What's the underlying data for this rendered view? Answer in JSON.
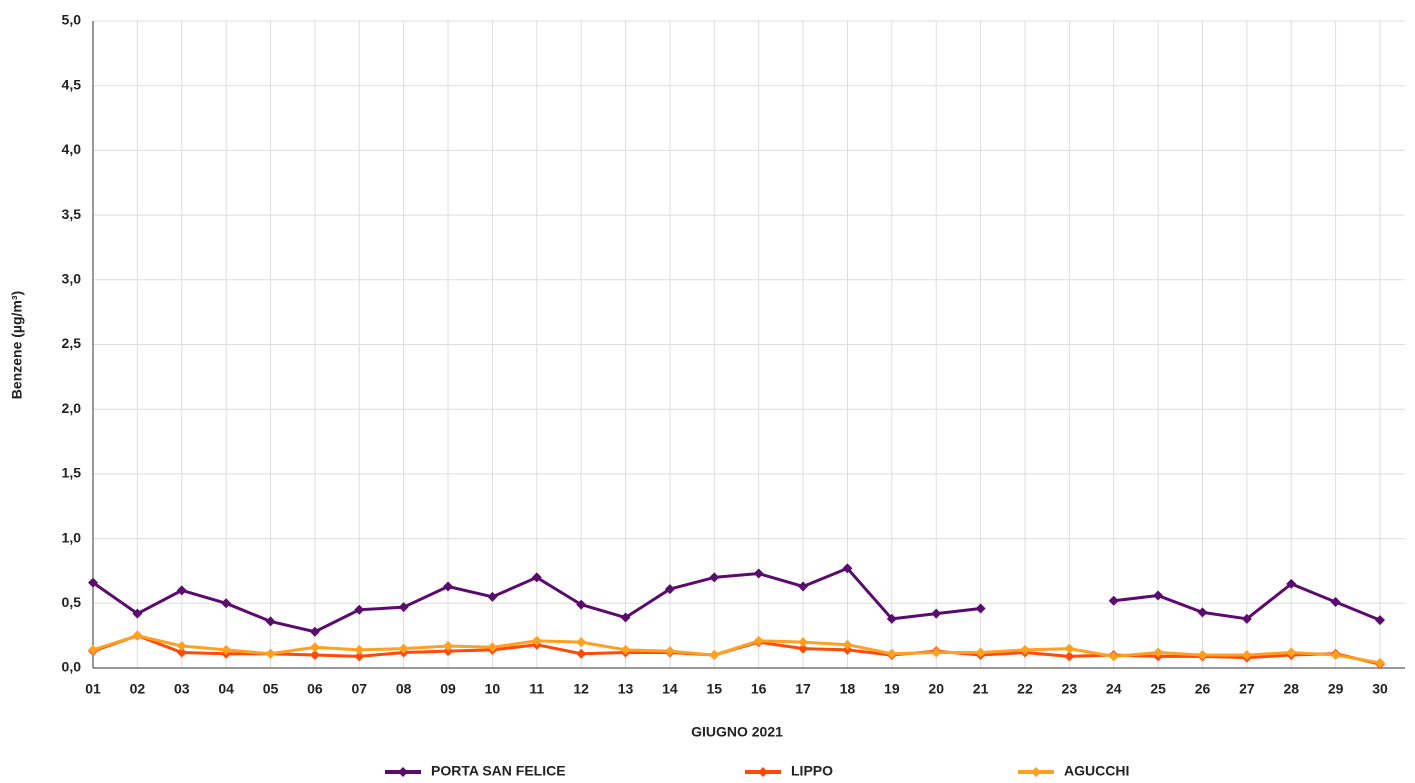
{
  "chart_data": {
    "type": "line",
    "x_label": "GIUGNO 2021",
    "y_label": "Benzene (µg/m³)",
    "categories": [
      "01",
      "02",
      "03",
      "04",
      "05",
      "06",
      "07",
      "08",
      "09",
      "10",
      "11",
      "12",
      "13",
      "14",
      "15",
      "16",
      "17",
      "18",
      "19",
      "20",
      "21",
      "22",
      "23",
      "24",
      "25",
      "26",
      "27",
      "28",
      "29",
      "30"
    ],
    "series": [
      {
        "name": "PORTA SAN FELICE",
        "color": "#5b0a6e",
        "values": [
          0.66,
          0.42,
          0.6,
          0.5,
          0.36,
          0.28,
          0.45,
          0.47,
          0.63,
          0.55,
          0.7,
          0.49,
          0.39,
          0.61,
          0.7,
          0.73,
          0.63,
          0.77,
          0.38,
          0.42,
          0.46,
          null,
          null,
          0.52,
          0.56,
          0.43,
          0.38,
          0.65,
          0.51,
          0.37
        ]
      },
      {
        "name": "LIPPO",
        "color": "#ff4a0a",
        "values": [
          0.13,
          0.25,
          0.12,
          0.11,
          0.11,
          0.1,
          0.09,
          0.12,
          0.13,
          0.14,
          0.18,
          0.11,
          0.12,
          0.12,
          0.1,
          0.2,
          0.15,
          0.14,
          0.1,
          0.13,
          0.1,
          0.12,
          0.09,
          0.1,
          0.09,
          0.09,
          0.08,
          0.1,
          0.11,
          0.03
        ]
      },
      {
        "name": "AGUCCHI",
        "color": "#ffa020",
        "values": [
          0.14,
          0.25,
          0.17,
          0.14,
          0.11,
          0.16,
          0.14,
          0.15,
          0.17,
          0.16,
          0.21,
          0.2,
          0.14,
          0.13,
          0.1,
          0.21,
          0.2,
          0.18,
          0.11,
          0.12,
          0.12,
          0.14,
          0.15,
          0.09,
          0.12,
          0.1,
          0.1,
          0.12,
          0.1,
          0.04
        ]
      }
    ],
    "ylim": [
      0,
      5
    ],
    "yticks": [
      {
        "value": 0,
        "label": "0,0"
      },
      {
        "value": 0.5,
        "label": "0,5"
      },
      {
        "value": 1,
        "label": "1,0"
      },
      {
        "value": 1.5,
        "label": "1,5"
      },
      {
        "value": 2,
        "label": "2,0"
      },
      {
        "value": 2.5,
        "label": "2,5"
      },
      {
        "value": 3,
        "label": "3,0"
      },
      {
        "value": 3.5,
        "label": "3,5"
      },
      {
        "value": 4,
        "label": "4,0"
      },
      {
        "value": 4.5,
        "label": "4,5"
      },
      {
        "value": 5,
        "label": "5,0"
      }
    ],
    "grid": true
  }
}
